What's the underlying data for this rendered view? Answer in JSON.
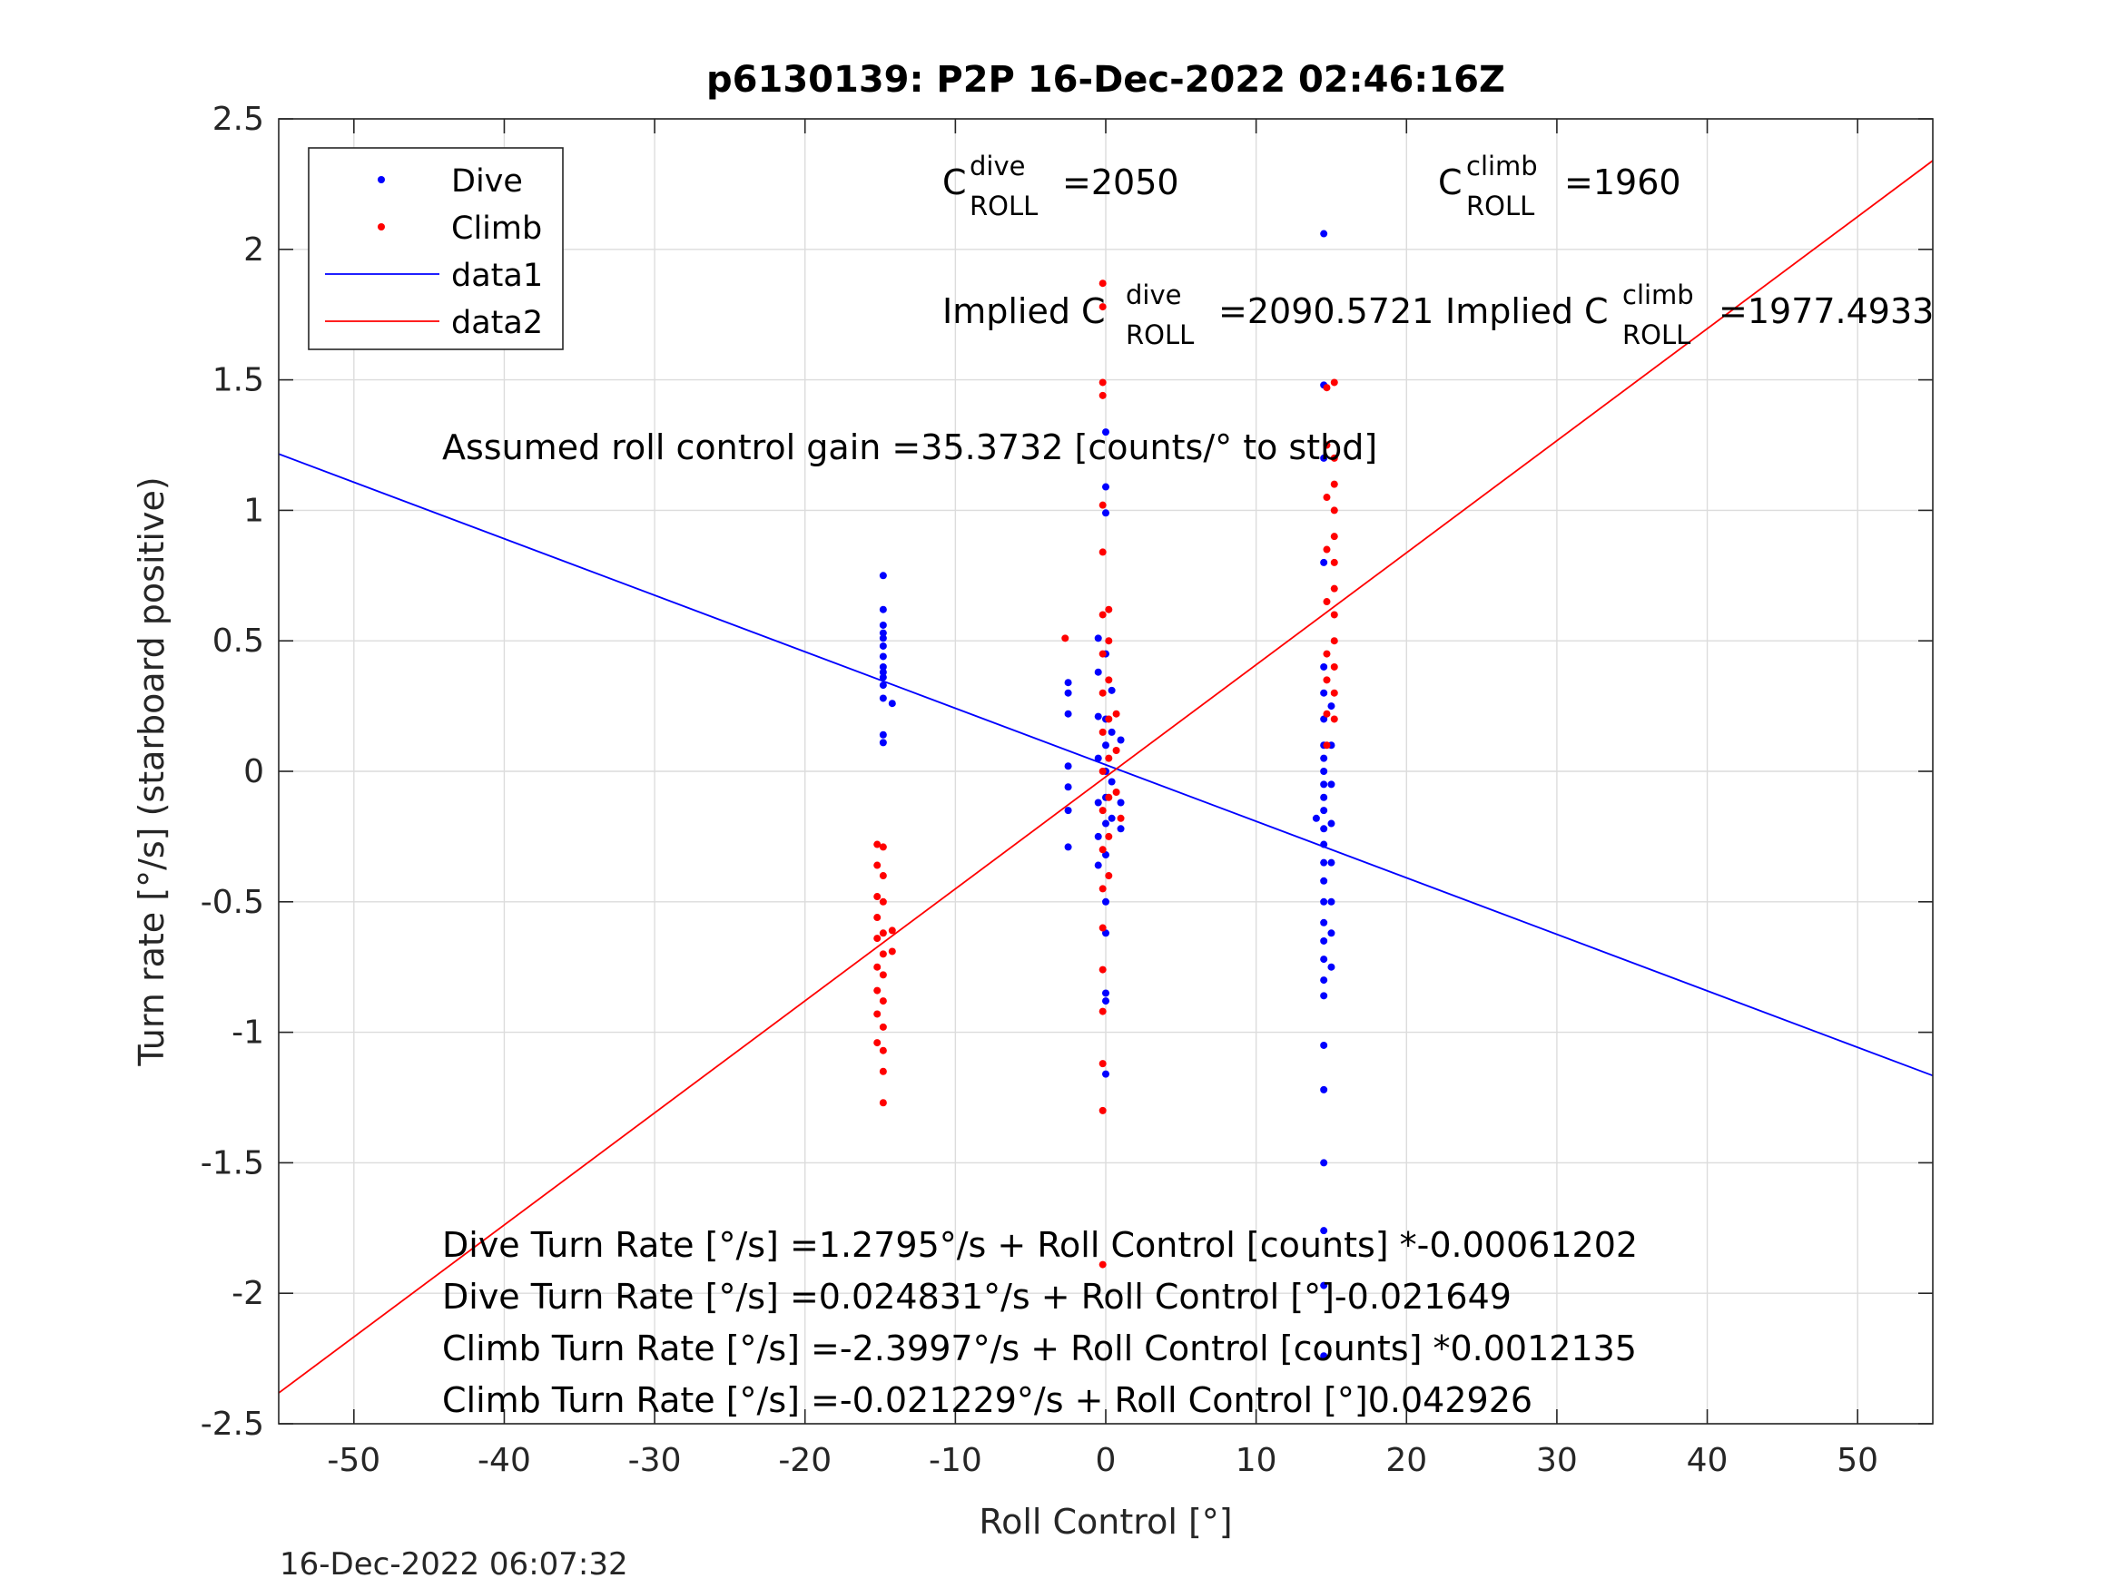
{
  "chart_data": {
    "type": "scatter",
    "title": "p6130139: P2P 16-Dec-2022 02:46:16Z",
    "xlabel": "Roll Control [°]",
    "ylabel": "Turn rate [°/s] (starboard positive)",
    "xlim": [
      -55,
      55
    ],
    "ylim": [
      -2.5,
      2.5
    ],
    "xticks": [
      -50,
      -40,
      -30,
      -20,
      -10,
      0,
      10,
      20,
      30,
      40,
      50
    ],
    "yticks": [
      -2.5,
      -2,
      -1.5,
      -1,
      -0.5,
      0,
      0.5,
      1,
      1.5,
      2,
      2.5
    ],
    "grid": true,
    "legend_position": "top-left",
    "timestamp": "16-Dec-2022 06:07:32",
    "legend": [
      {
        "label": "Dive",
        "kind": "marker",
        "color": "#0000ff"
      },
      {
        "label": "Climb",
        "kind": "marker",
        "color": "#ff0000"
      },
      {
        "label": "data1",
        "kind": "line",
        "color": "#0000ff"
      },
      {
        "label": "data2",
        "kind": "line",
        "color": "#ff0000"
      }
    ],
    "annotations": {
      "c_dive": {
        "base": "C",
        "sup": "dive",
        "sub": "ROLL",
        "value": "=2050"
      },
      "c_climb": {
        "base": "C",
        "sup": "climb",
        "sub": "ROLL",
        "value": "=1960"
      },
      "implied_dive": {
        "base": "Implied C",
        "sup": "dive",
        "sub": "ROLL",
        "value": "=2090.5721"
      },
      "implied_climb": {
        "base": "Implied C",
        "sup": "climb",
        "sub": "ROLL",
        "value": "=1977.4933"
      },
      "gain": "Assumed roll control gain =35.3732 [counts/° to stbd]",
      "eq1": "Dive Turn Rate [°/s] =1.2795°/s + Roll Control [counts] *-0.00061202",
      "eq2": "Dive Turn Rate [°/s] =0.024831°/s + Roll Control [°]-0.021649",
      "eq3": "Climb Turn Rate [°/s] =-2.3997°/s + Roll Control [counts] *0.0012135",
      "eq4": "Climb Turn Rate [°/s] =-0.021229°/s + Roll Control [°]0.042926"
    },
    "series": [
      {
        "name": "Dive",
        "kind": "scatter",
        "color": "#0000ff",
        "points": [
          [
            -14.8,
            0.75
          ],
          [
            -14.8,
            0.62
          ],
          [
            -14.8,
            0.56
          ],
          [
            -14.8,
            0.53
          ],
          [
            -14.8,
            0.51
          ],
          [
            -14.8,
            0.48
          ],
          [
            -14.8,
            0.44
          ],
          [
            -14.8,
            0.4
          ],
          [
            -14.8,
            0.38
          ],
          [
            -14.8,
            0.36
          ],
          [
            -14.8,
            0.33
          ],
          [
            -14.8,
            0.28
          ],
          [
            -14.8,
            0.14
          ],
          [
            -14.8,
            0.11
          ],
          [
            -14.2,
            0.26
          ],
          [
            -2.5,
            0.34
          ],
          [
            -2.5,
            0.3
          ],
          [
            -2.5,
            0.22
          ],
          [
            -2.5,
            0.02
          ],
          [
            -2.5,
            -0.06
          ],
          [
            -2.5,
            -0.15
          ],
          [
            -2.5,
            -0.29
          ],
          [
            -0.5,
            0.51
          ],
          [
            -0.5,
            0.38
          ],
          [
            -0.5,
            0.21
          ],
          [
            -0.5,
            0.05
          ],
          [
            -0.5,
            -0.12
          ],
          [
            -0.5,
            -0.25
          ],
          [
            -0.5,
            -0.36
          ],
          [
            0.0,
            1.3
          ],
          [
            0.0,
            1.09
          ],
          [
            0.0,
            0.99
          ],
          [
            0.0,
            0.45
          ],
          [
            0.0,
            0.2
          ],
          [
            0.0,
            0.1
          ],
          [
            0.0,
            0.0
          ],
          [
            0.0,
            -0.1
          ],
          [
            0.0,
            -0.2
          ],
          [
            0.0,
            -0.32
          ],
          [
            0.0,
            -0.5
          ],
          [
            0.0,
            -0.62
          ],
          [
            0.0,
            -0.85
          ],
          [
            0.0,
            -0.88
          ],
          [
            0.0,
            -1.16
          ],
          [
            0.4,
            0.31
          ],
          [
            0.4,
            0.15
          ],
          [
            0.4,
            -0.04
          ],
          [
            0.4,
            -0.18
          ],
          [
            1.0,
            0.12
          ],
          [
            1.0,
            -0.12
          ],
          [
            1.0,
            -0.22
          ],
          [
            14.0,
            -0.18
          ],
          [
            14.5,
            2.06
          ],
          [
            14.5,
            1.48
          ],
          [
            14.5,
            1.2
          ],
          [
            14.5,
            0.8
          ],
          [
            14.5,
            0.4
          ],
          [
            14.5,
            0.3
          ],
          [
            14.5,
            0.2
          ],
          [
            14.5,
            0.1
          ],
          [
            14.5,
            0.05
          ],
          [
            14.5,
            0.0
          ],
          [
            14.5,
            -0.05
          ],
          [
            14.5,
            -0.1
          ],
          [
            14.5,
            -0.15
          ],
          [
            14.5,
            -0.22
          ],
          [
            14.5,
            -0.28
          ],
          [
            14.5,
            -0.35
          ],
          [
            14.5,
            -0.42
          ],
          [
            14.5,
            -0.5
          ],
          [
            14.5,
            -0.58
          ],
          [
            14.5,
            -0.65
          ],
          [
            14.5,
            -0.72
          ],
          [
            14.5,
            -0.8
          ],
          [
            14.5,
            -0.86
          ],
          [
            14.5,
            -1.05
          ],
          [
            14.5,
            -1.22
          ],
          [
            14.5,
            -1.5
          ],
          [
            14.5,
            -1.76
          ],
          [
            14.5,
            -1.97
          ],
          [
            14.5,
            -2.24
          ],
          [
            15.0,
            0.25
          ],
          [
            15.0,
            0.1
          ],
          [
            15.0,
            -0.05
          ],
          [
            15.0,
            -0.2
          ],
          [
            15.0,
            -0.35
          ],
          [
            15.0,
            -0.5
          ],
          [
            15.0,
            -0.62
          ],
          [
            15.0,
            -0.75
          ]
        ]
      },
      {
        "name": "Climb",
        "kind": "scatter",
        "color": "#ff0000",
        "points": [
          [
            -15.2,
            -0.28
          ],
          [
            -15.2,
            -0.36
          ],
          [
            -15.2,
            -0.48
          ],
          [
            -15.2,
            -0.56
          ],
          [
            -15.2,
            -0.64
          ],
          [
            -15.2,
            -0.75
          ],
          [
            -15.2,
            -0.84
          ],
          [
            -15.2,
            -0.93
          ],
          [
            -15.2,
            -1.04
          ],
          [
            -14.8,
            -0.29
          ],
          [
            -14.8,
            -0.4
          ],
          [
            -14.8,
            -0.5
          ],
          [
            -14.8,
            -0.62
          ],
          [
            -14.8,
            -0.7
          ],
          [
            -14.8,
            -0.78
          ],
          [
            -14.8,
            -0.88
          ],
          [
            -14.8,
            -0.98
          ],
          [
            -14.8,
            -1.07
          ],
          [
            -14.8,
            -1.15
          ],
          [
            -14.8,
            -1.27
          ],
          [
            -14.2,
            -0.61
          ],
          [
            -14.2,
            -0.69
          ],
          [
            -2.7,
            0.51
          ],
          [
            -0.2,
            1.87
          ],
          [
            -0.2,
            1.78
          ],
          [
            -0.2,
            1.49
          ],
          [
            -0.2,
            1.44
          ],
          [
            -0.2,
            1.02
          ],
          [
            -0.2,
            0.84
          ],
          [
            -0.2,
            0.6
          ],
          [
            -0.2,
            0.45
          ],
          [
            -0.2,
            0.3
          ],
          [
            -0.2,
            0.15
          ],
          [
            -0.2,
            0.0
          ],
          [
            -0.2,
            -0.15
          ],
          [
            -0.2,
            -0.3
          ],
          [
            -0.2,
            -0.45
          ],
          [
            -0.2,
            -0.6
          ],
          [
            -0.2,
            -0.76
          ],
          [
            -0.2,
            -0.92
          ],
          [
            -0.2,
            -1.12
          ],
          [
            -0.2,
            -1.3
          ],
          [
            -0.2,
            -1.89
          ],
          [
            0.2,
            0.62
          ],
          [
            0.2,
            0.5
          ],
          [
            0.2,
            0.35
          ],
          [
            0.2,
            0.2
          ],
          [
            0.2,
            0.05
          ],
          [
            0.2,
            -0.1
          ],
          [
            0.2,
            -0.25
          ],
          [
            0.2,
            -0.4
          ],
          [
            0.7,
            0.22
          ],
          [
            0.7,
            0.08
          ],
          [
            0.7,
            -0.08
          ],
          [
            1.0,
            -0.18
          ],
          [
            14.7,
            1.47
          ],
          [
            14.7,
            1.25
          ],
          [
            14.7,
            1.05
          ],
          [
            14.7,
            0.85
          ],
          [
            14.7,
            0.65
          ],
          [
            14.7,
            0.45
          ],
          [
            14.7,
            0.35
          ],
          [
            14.7,
            0.22
          ],
          [
            14.7,
            0.1
          ],
          [
            15.2,
            1.49
          ],
          [
            15.2,
            1.2
          ],
          [
            15.2,
            1.1
          ],
          [
            15.2,
            1.0
          ],
          [
            15.2,
            0.9
          ],
          [
            15.2,
            0.8
          ],
          [
            15.2,
            0.7
          ],
          [
            15.2,
            0.6
          ],
          [
            15.2,
            0.5
          ],
          [
            15.2,
            0.4
          ],
          [
            15.2,
            0.3
          ],
          [
            15.2,
            0.2
          ]
        ]
      },
      {
        "name": "data1",
        "kind": "line",
        "color": "#0000ff",
        "points": [
          [
            -55,
            1.216
          ],
          [
            55,
            -1.166
          ]
        ]
      },
      {
        "name": "data2",
        "kind": "line",
        "color": "#ff0000",
        "points": [
          [
            -55,
            -2.382
          ],
          [
            55,
            2.34
          ]
        ]
      }
    ]
  }
}
